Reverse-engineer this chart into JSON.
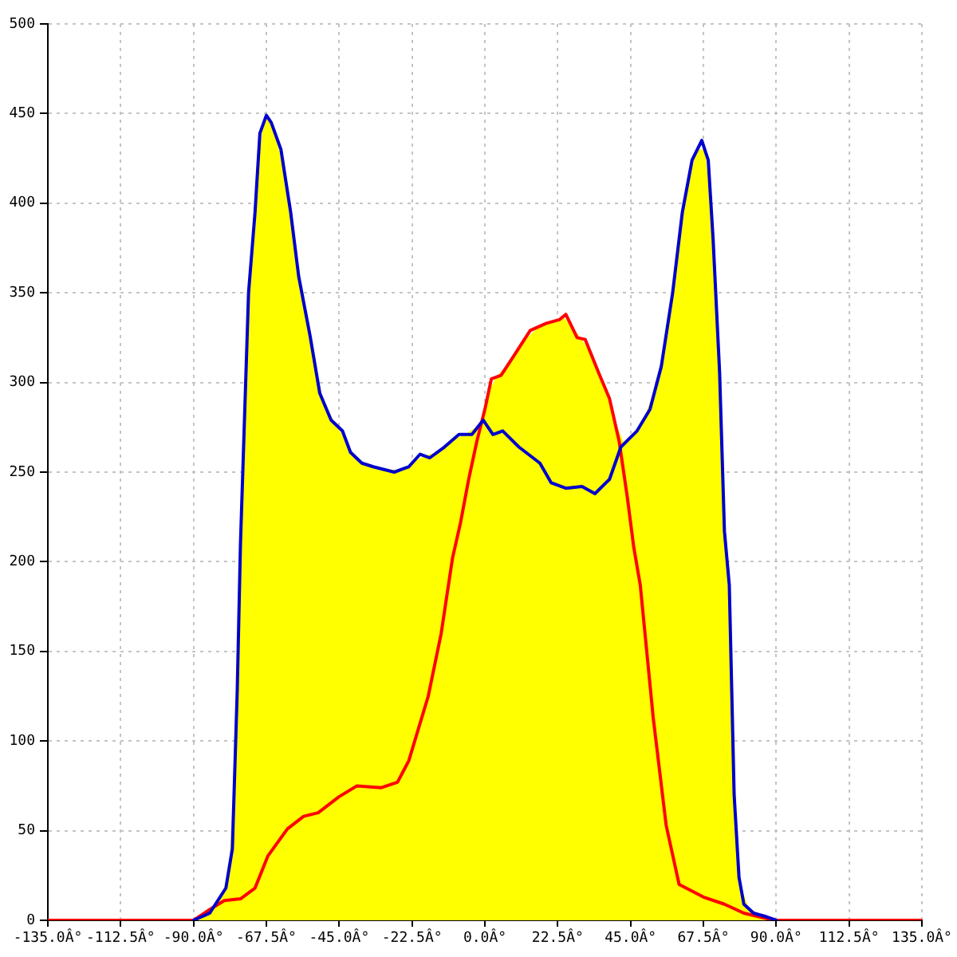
{
  "chart_data": {
    "type": "line",
    "xlim": [
      -135,
      135
    ],
    "ylim": [
      0,
      500
    ],
    "xticks": [
      {
        "value": -135,
        "label": "-135.0Â°"
      },
      {
        "value": -112.5,
        "label": "-112.5Â°"
      },
      {
        "value": -90,
        "label": "-90.0Â°"
      },
      {
        "value": -67.5,
        "label": "-67.5Â°"
      },
      {
        "value": -45,
        "label": "-45.0Â°"
      },
      {
        "value": -22.5,
        "label": "-22.5Â°"
      },
      {
        "value": 0,
        "label": "0.0Â°"
      },
      {
        "value": 22.5,
        "label": "22.5Â°"
      },
      {
        "value": 45,
        "label": "45.0Â°"
      },
      {
        "value": 67.5,
        "label": "67.5Â°"
      },
      {
        "value": 90,
        "label": "90.0Â°"
      },
      {
        "value": 112.5,
        "label": "112.5Â°"
      },
      {
        "value": 135,
        "label": "135.0Â°"
      }
    ],
    "yticks": [
      0,
      50,
      100,
      150,
      200,
      250,
      300,
      350,
      400,
      450,
      500
    ],
    "grid": true,
    "legend": false,
    "series": [
      {
        "color": "#0000cc",
        "x": [
          -90,
          -85,
          -80,
          -78,
          -76.5,
          -75.5,
          -73,
          -71,
          -69.5,
          -67.5,
          -66,
          -63,
          -60,
          -57.5,
          -54,
          -51,
          -47.5,
          -44,
          -41.5,
          -38,
          -34.5,
          -28,
          -23.5,
          -20,
          -17,
          -12.5,
          -8,
          -4,
          -0.5,
          2.5,
          5.5,
          10.5,
          17,
          20.5,
          25,
          30,
          34,
          38.5,
          42,
          47,
          51,
          54.5,
          58,
          61,
          64,
          67,
          69,
          70.5,
          72.5,
          74,
          75.5,
          77,
          78.5,
          80,
          83,
          87,
          90
        ],
        "values": [
          0,
          4,
          18,
          40,
          128,
          210,
          350,
          395,
          439,
          449,
          445,
          430,
          395,
          359,
          326,
          294,
          279,
          273,
          261,
          255,
          253,
          250,
          253,
          260,
          258,
          264,
          271,
          271,
          279,
          271,
          273,
          264,
          255,
          244,
          241,
          242,
          238,
          246,
          264,
          273,
          285,
          309,
          350,
          395,
          424,
          435,
          424,
          380,
          306,
          217,
          187,
          70,
          24,
          9,
          4,
          2,
          0
        ]
      },
      {
        "color": "#ff0000",
        "x": [
          -135,
          -90,
          -85,
          -80.5,
          -75.5,
          -71,
          -67,
          -61,
          -56,
          -51.5,
          -45,
          -39.5,
          -32,
          -27,
          -23.5,
          -17.5,
          -13.5,
          -10,
          -7.5,
          -5,
          -2.5,
          0,
          2,
          5,
          9,
          14,
          19,
          23,
          25,
          28.5,
          31,
          35,
          38.5,
          41.5,
          44,
          46,
          48,
          52,
          56,
          60,
          67.5,
          74,
          80,
          87,
          90,
          135
        ],
        "values": [
          0,
          0,
          6,
          11,
          12,
          18,
          36,
          51,
          58,
          60,
          69,
          75,
          74,
          77,
          89,
          125,
          160,
          202,
          222,
          246,
          267,
          285,
          302,
          304,
          315,
          329,
          333,
          335,
          338,
          325,
          324,
          306,
          291,
          267,
          236,
          208,
          187,
          113,
          53,
          20,
          13,
          9,
          4,
          1,
          0,
          0
        ]
      },
      {
        "type": "area",
        "color": "#ffff00",
        "x": [
          -90,
          -87,
          -84,
          -81,
          -79,
          -77,
          -76,
          -75,
          -74,
          -72,
          -70,
          -68.5,
          -67,
          -65,
          -62,
          -59,
          -56,
          -53,
          -50,
          -46,
          -43,
          -40,
          -36,
          -32,
          -26,
          -22,
          -18.5,
          -15,
          -10,
          -6,
          -2,
          -1,
          1,
          3.5,
          7,
          11.5,
          16.5,
          21,
          24,
          26.5,
          30,
          33,
          36.5,
          40,
          43,
          45,
          49,
          53,
          56,
          59.5,
          62.5,
          65.5,
          68,
          70,
          71.5,
          73,
          74.5,
          76,
          78,
          79,
          81.5,
          85,
          88.5,
          90
        ],
        "values": [
          0,
          2,
          7,
          15,
          29,
          99,
          169,
          238,
          294,
          372,
          424,
          444,
          448,
          440,
          418,
          381,
          345,
          315,
          290,
          276,
          268,
          258,
          254,
          252,
          251,
          256,
          259,
          261,
          268,
          271,
          276,
          278,
          294,
          303,
          310,
          322,
          331,
          334,
          337,
          332,
          324,
          315,
          300,
          279,
          266,
          269,
          279,
          299,
          327,
          372,
          410,
          430,
          430,
          395,
          343,
          276,
          207,
          148,
          39,
          19,
          7,
          3,
          1,
          0
        ]
      }
    ]
  }
}
